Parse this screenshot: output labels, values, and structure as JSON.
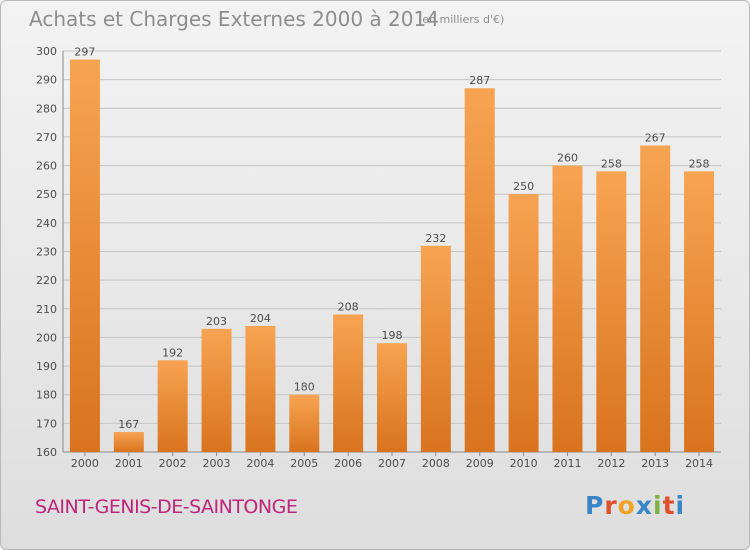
{
  "title": "Achats et Charges Externes 2000 à 2014",
  "subtitle": "(en milliers d'€)",
  "city": "SAINT-GENIS-DE-SAINTONGE",
  "logo": "Proxiti",
  "colors": {
    "bar_light": "#f7a452",
    "bar_dark": "#d9731e",
    "city": "#c0257a"
  },
  "chart_data": {
    "type": "bar",
    "title": "Achats et Charges Externes 2000 à 2014",
    "subtitle": "(en milliers d'€)",
    "categories": [
      "2000",
      "2001",
      "2002",
      "2003",
      "2004",
      "2005",
      "2006",
      "2007",
      "2008",
      "2009",
      "2010",
      "2011",
      "2012",
      "2013",
      "2014"
    ],
    "values": [
      297,
      167,
      192,
      203,
      204,
      180,
      208,
      198,
      232,
      287,
      250,
      260,
      258,
      267,
      258
    ],
    "ylim": [
      160,
      300
    ],
    "yticks": [
      160,
      170,
      180,
      190,
      200,
      210,
      220,
      230,
      240,
      250,
      260,
      270,
      280,
      290,
      300
    ],
    "grid": true
  }
}
